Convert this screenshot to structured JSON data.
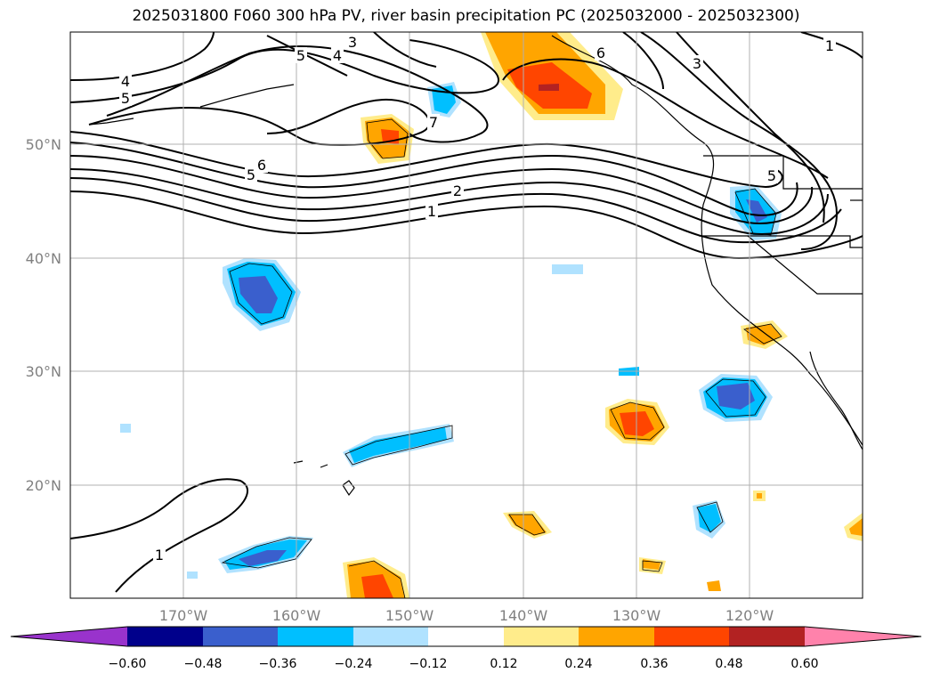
{
  "title": "2025031800 F060 300 hPa PV, river basin precipitation PC (2025032000 - 2025032300)",
  "lat_labels": [
    "50°N",
    "40°N",
    "30°N",
    "20°N"
  ],
  "lon_labels": [
    "170°W",
    "160°W",
    "150°W",
    "140°W",
    "130°W",
    "120°W"
  ],
  "colorbar": {
    "ticks": [
      "−0.60",
      "−0.48",
      "−0.36",
      "−0.24",
      "−0.12",
      "0.12",
      "0.24",
      "0.36",
      "0.48",
      "0.60"
    ],
    "colors": [
      "#9933cc",
      "#00008b",
      "#3a5fcd",
      "#00bfff",
      "#b0e2ff",
      "#ffffff",
      "#ffec8b",
      "#ffa500",
      "#ff4500",
      "#b22222",
      "#ff82ab"
    ]
  },
  "contour_labels": [
    "4",
    "5",
    "3",
    "5",
    "4",
    "6",
    "6",
    "5",
    "7",
    "2",
    "1",
    "3",
    "1",
    "5",
    "1"
  ],
  "shade_colors": {
    "neg1": "#b0e2ff",
    "neg2": "#00bfff",
    "neg3": "#3a5fcd",
    "pos1": "#ffec8b",
    "pos2": "#ffa500",
    "pos3": "#ff4500",
    "pos4": "#b22222"
  }
}
